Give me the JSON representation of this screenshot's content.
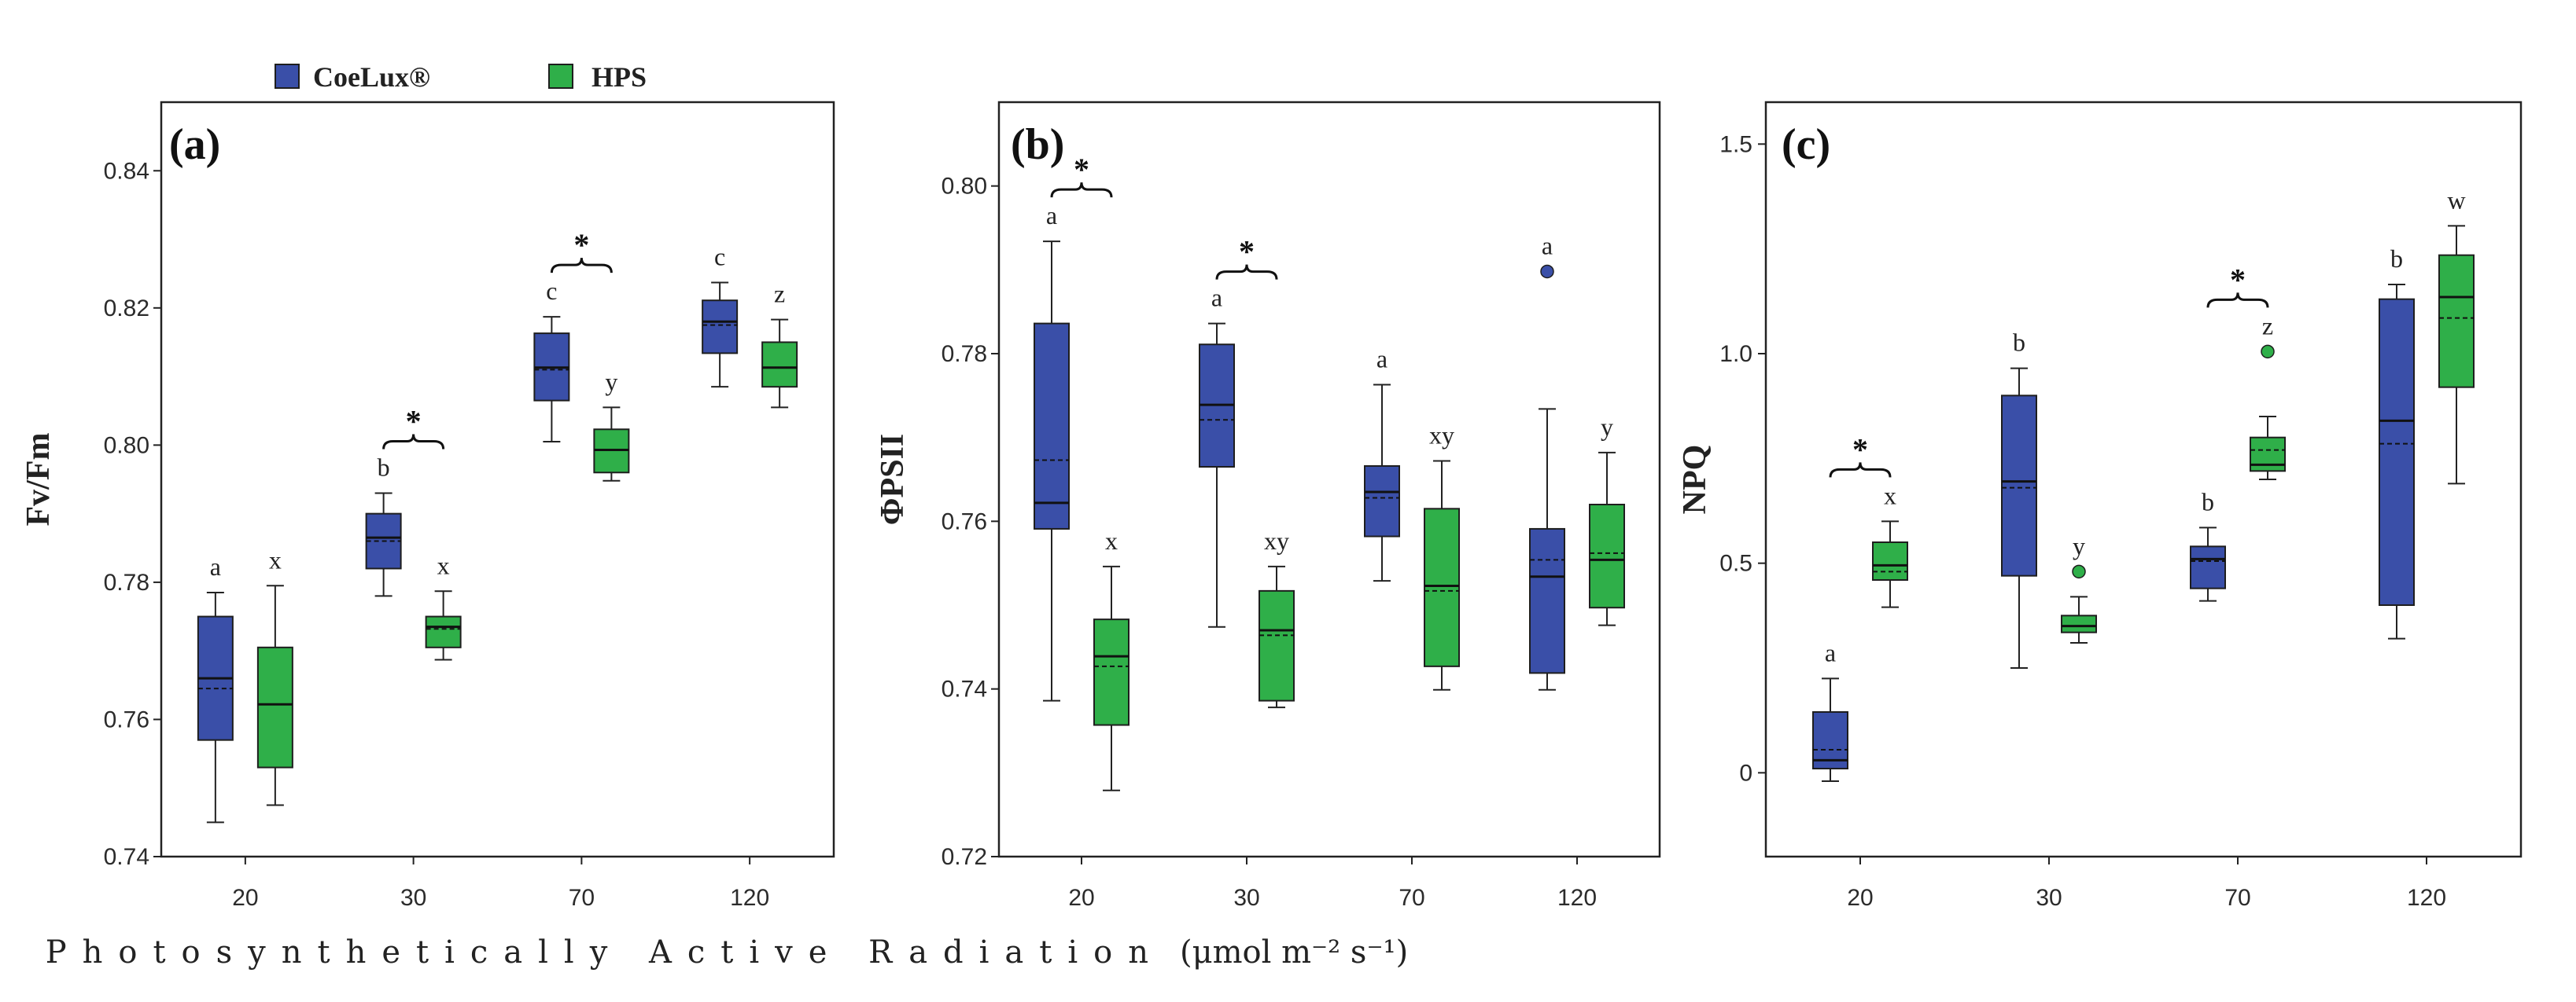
{
  "legend": {
    "items": [
      {
        "name": "CoeLux®",
        "color": "#3a4fa8"
      },
      {
        "name": "HPS",
        "color": "#2faf49"
      }
    ]
  },
  "x_axis_title": "Photosynthetically Active Radiation",
  "x_axis_unit": "(μmol m⁻² s⁻¹)",
  "chart_data": [
    {
      "type": "box",
      "panel": "(a)",
      "ylabel": "Fv/Fm",
      "categories": [
        "20",
        "30",
        "70",
        "120"
      ],
      "ylim": [
        0.74,
        0.85
      ],
      "yticks": [
        0.74,
        0.76,
        0.78,
        0.8,
        0.82,
        0.84
      ],
      "ytick_labels": [
        "0.74",
        "0.76",
        "0.78",
        "0.80",
        "0.82",
        "0.84"
      ],
      "series": [
        {
          "name": "CoeLux®",
          "color": "#3a4fa8",
          "boxes": [
            {
              "min": 0.745,
              "q1": 0.757,
              "median": 0.766,
              "mean": 0.7645,
              "q3": 0.775,
              "max": 0.7785,
              "outliers": [],
              "letter": "a"
            },
            {
              "min": 0.778,
              "q1": 0.782,
              "median": 0.7865,
              "mean": 0.786,
              "q3": 0.79,
              "max": 0.793,
              "outliers": [],
              "letter": "b"
            },
            {
              "min": 0.8005,
              "q1": 0.8065,
              "median": 0.8113,
              "mean": 0.811,
              "q3": 0.8163,
              "max": 0.8187,
              "outliers": [],
              "letter": "c"
            },
            {
              "min": 0.8085,
              "q1": 0.8134,
              "median": 0.818,
              "mean": 0.8175,
              "q3": 0.8211,
              "max": 0.8237,
              "outliers": [],
              "letter": "c"
            }
          ]
        },
        {
          "name": "HPS",
          "color": "#2faf49",
          "boxes": [
            {
              "min": 0.7475,
              "q1": 0.753,
              "median": 0.7622,
              "mean": 0.7622,
              "q3": 0.7705,
              "max": 0.7795,
              "outliers": [],
              "letter": "x"
            },
            {
              "min": 0.7687,
              "q1": 0.7705,
              "median": 0.7735,
              "mean": 0.7732,
              "q3": 0.775,
              "max": 0.7787,
              "outliers": [],
              "letter": "x"
            },
            {
              "min": 0.7948,
              "q1": 0.796,
              "median": 0.7993,
              "mean": 0.7993,
              "q3": 0.8023,
              "max": 0.8055,
              "outliers": [],
              "letter": "y"
            },
            {
              "min": 0.8055,
              "q1": 0.8085,
              "median": 0.8113,
              "mean": 0.8113,
              "q3": 0.815,
              "max": 0.8183,
              "outliers": [],
              "letter": "z"
            }
          ]
        }
      ],
      "significance": [
        {
          "category": "30",
          "label": "*"
        },
        {
          "category": "70",
          "label": "*"
        }
      ]
    },
    {
      "type": "box",
      "panel": "(b)",
      "ylabel": "ΦPSII",
      "categories": [
        "20",
        "30",
        "70",
        "120"
      ],
      "ylim": [
        0.72,
        0.81
      ],
      "yticks": [
        0.72,
        0.74,
        0.76,
        0.78,
        0.8
      ],
      "ytick_labels": [
        "0.72",
        "0.74",
        "0.76",
        "0.78",
        "0.80"
      ],
      "series": [
        {
          "name": "CoeLux®",
          "color": "#3a4fa8",
          "boxes": [
            {
              "min": 0.7386,
              "q1": 0.7591,
              "median": 0.7622,
              "mean": 0.7673,
              "q3": 0.7836,
              "max": 0.7934,
              "outliers": [],
              "letter": "a"
            },
            {
              "min": 0.7474,
              "q1": 0.7665,
              "median": 0.7739,
              "mean": 0.7721,
              "q3": 0.7811,
              "max": 0.7836,
              "outliers": [],
              "letter": "a"
            },
            {
              "min": 0.7529,
              "q1": 0.7582,
              "median": 0.7635,
              "mean": 0.7628,
              "q3": 0.7666,
              "max": 0.7763,
              "outliers": [],
              "letter": "a"
            },
            {
              "min": 0.7399,
              "q1": 0.7419,
              "median": 0.7534,
              "mean": 0.7554,
              "q3": 0.7591,
              "max": 0.7734,
              "outliers": [
                0.7898
              ],
              "letter": "a"
            }
          ]
        },
        {
          "name": "HPS",
          "color": "#2faf49",
          "boxes": [
            {
              "min": 0.7279,
              "q1": 0.7357,
              "median": 0.7439,
              "mean": 0.7427,
              "q3": 0.7483,
              "max": 0.7546,
              "outliers": [],
              "letter": "x"
            },
            {
              "min": 0.7378,
              "q1": 0.7386,
              "median": 0.747,
              "mean": 0.7464,
              "q3": 0.7517,
              "max": 0.7546,
              "outliers": [],
              "letter": "xy"
            },
            {
              "min": 0.7399,
              "q1": 0.7427,
              "median": 0.7523,
              "mean": 0.7517,
              "q3": 0.7615,
              "max": 0.7672,
              "outliers": [],
              "letter": "xy"
            },
            {
              "min": 0.7476,
              "q1": 0.7497,
              "median": 0.7554,
              "mean": 0.7562,
              "q3": 0.762,
              "max": 0.7682,
              "outliers": [],
              "letter": "y"
            }
          ]
        }
      ],
      "significance": [
        {
          "category": "20",
          "label": "*"
        },
        {
          "category": "30",
          "label": "*"
        }
      ]
    },
    {
      "type": "box",
      "panel": "(c)",
      "ylabel": "NPQ",
      "categories": [
        "20",
        "30",
        "70",
        "120"
      ],
      "ylim": [
        -0.2,
        1.6
      ],
      "yticks": [
        0,
        0.5,
        1.0,
        1.5
      ],
      "ytick_labels": [
        "0",
        "0.5",
        "1.0",
        "1.5"
      ],
      "series": [
        {
          "name": "CoeLux®",
          "color": "#3a4fa8",
          "boxes": [
            {
              "min": -0.02,
              "q1": 0.01,
              "median": 0.03,
              "mean": 0.055,
              "q3": 0.145,
              "max": 0.225,
              "outliers": [],
              "letter": "a"
            },
            {
              "min": 0.25,
              "q1": 0.47,
              "median": 0.695,
              "mean": 0.68,
              "q3": 0.9,
              "max": 0.965,
              "outliers": [],
              "letter": "b"
            },
            {
              "min": 0.41,
              "q1": 0.44,
              "median": 0.51,
              "mean": 0.505,
              "q3": 0.54,
              "max": 0.585,
              "outliers": [],
              "letter": "b"
            },
            {
              "min": 0.32,
              "q1": 0.4,
              "median": 0.84,
              "mean": 0.785,
              "q3": 1.13,
              "max": 1.165,
              "outliers": [],
              "letter": "b"
            }
          ]
        },
        {
          "name": "HPS",
          "color": "#2faf49",
          "boxes": [
            {
              "min": 0.395,
              "q1": 0.46,
              "median": 0.495,
              "mean": 0.48,
              "q3": 0.55,
              "max": 0.6,
              "outliers": [],
              "letter": "x"
            },
            {
              "min": 0.31,
              "q1": 0.335,
              "median": 0.35,
              "mean": 0.35,
              "q3": 0.375,
              "max": 0.42,
              "outliers": [
                0.48
              ],
              "letter": "y"
            },
            {
              "min": 0.7,
              "q1": 0.72,
              "median": 0.735,
              "mean": 0.77,
              "q3": 0.8,
              "max": 0.85,
              "outliers": [
                1.005
              ],
              "letter": "z"
            },
            {
              "min": 0.69,
              "q1": 0.92,
              "median": 1.135,
              "mean": 1.085,
              "q3": 1.235,
              "max": 1.305,
              "outliers": [],
              "letter": "w"
            }
          ]
        }
      ],
      "significance": [
        {
          "category": "20",
          "label": "*"
        },
        {
          "category": "70",
          "label": "*"
        }
      ]
    }
  ]
}
